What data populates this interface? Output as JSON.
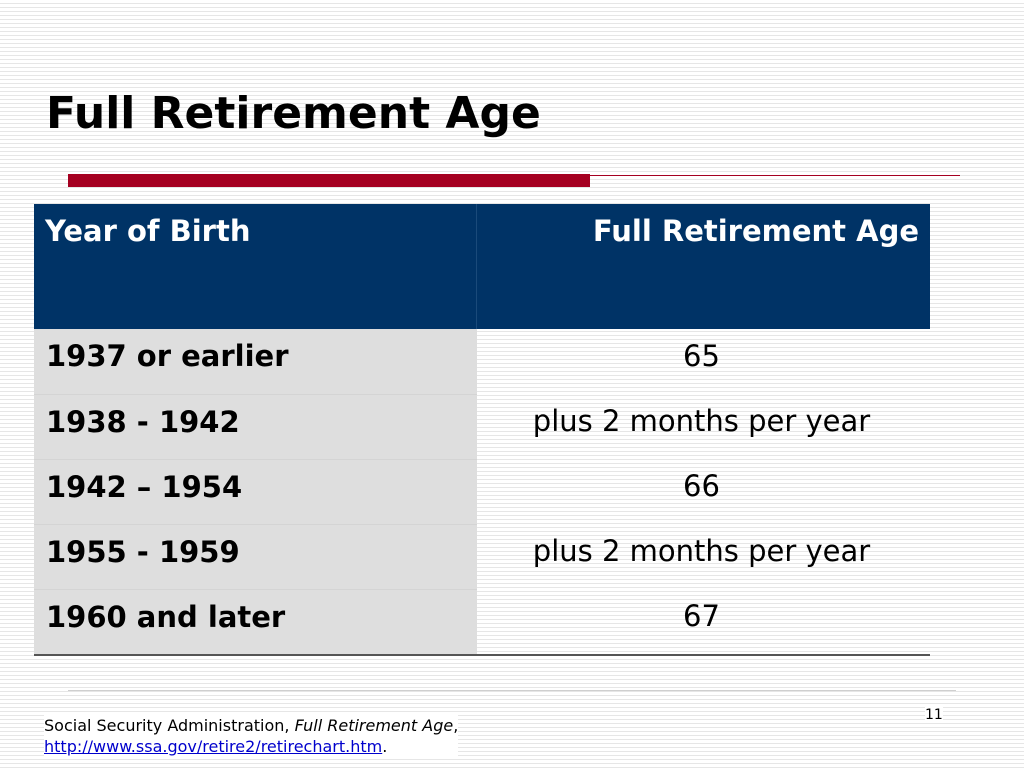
{
  "slide": {
    "title": "Full Retirement Age",
    "page_number": "11"
  },
  "table": {
    "headers": [
      "Year of Birth",
      "Full Retirement Age"
    ],
    "rows": [
      [
        "1937 or earlier",
        "65"
      ],
      [
        "1938 - 1942",
        "plus 2 months per year"
      ],
      [
        "1942 – 1954",
        "66"
      ],
      [
        "1955 - 1959",
        "plus 2 months per year"
      ],
      [
        "1960 and later",
        "67"
      ]
    ]
  },
  "footer": {
    "source_prefix": "Social Security Administration, ",
    "source_title": "Full Retirement Age",
    "source_comma": ",",
    "url": "http://www.ssa.gov/retire2/retirechart.htm",
    "url_period": "."
  },
  "colors": {
    "header_bg": "#003366",
    "accent_bar": "#a50021",
    "first_col_bg": "#dedede",
    "link": "#0000cc"
  }
}
